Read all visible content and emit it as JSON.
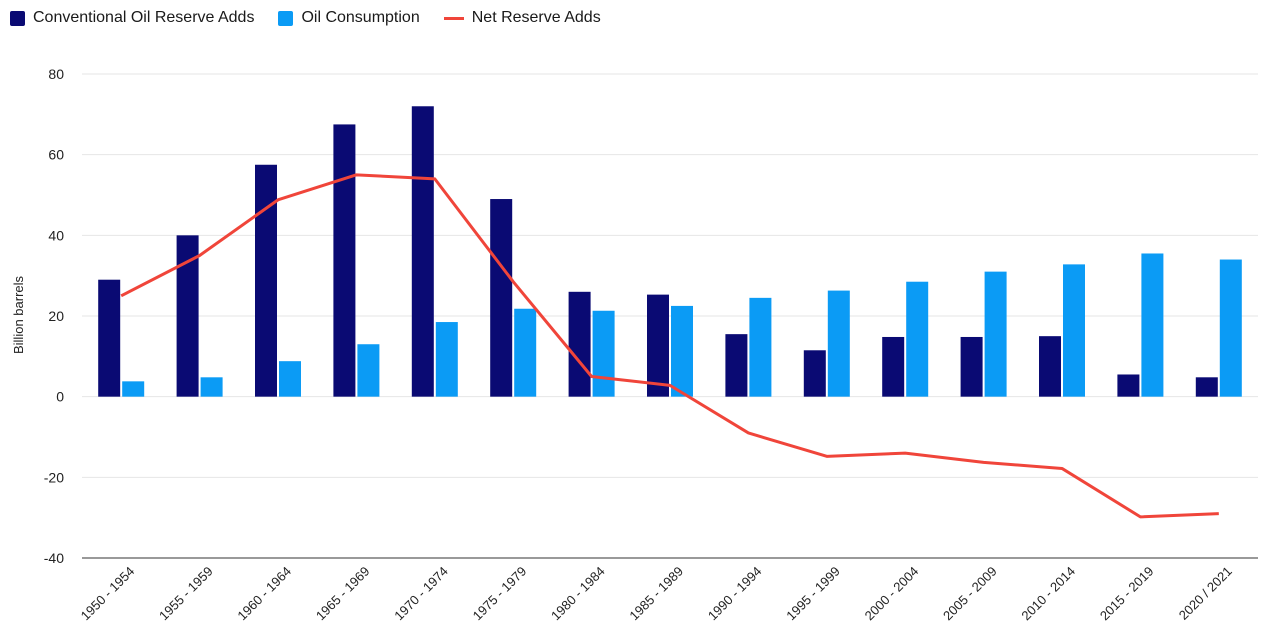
{
  "chart_data": {
    "type": "bar",
    "title": "",
    "xlabel": "",
    "ylabel": "Billion barrels",
    "ylim": [
      -40,
      80
    ],
    "yticks": [
      80,
      60,
      40,
      20,
      0,
      -20,
      -40
    ],
    "grid": true,
    "legend_position": "top-left",
    "categories": [
      "1950 - 1954",
      "1955 - 1959",
      "1960 - 1964",
      "1965 - 1969",
      "1970 - 1974",
      "1975 - 1979",
      "1980 - 1984",
      "1985 - 1989",
      "1990 - 1994",
      "1995 - 1999",
      "2000 - 2004",
      "2005 - 2009",
      "2010 - 2014",
      "2015 - 2019",
      "2020 / 2021"
    ],
    "series": [
      {
        "name": "Conventional Oil Reserve Adds",
        "kind": "bar",
        "color": "#0a0a73",
        "values": [
          29,
          40,
          57.5,
          67.5,
          72,
          49,
          26,
          25.3,
          15.5,
          11.5,
          14.8,
          14.8,
          15,
          5.5,
          4.8
        ]
      },
      {
        "name": "Oil Consumption",
        "kind": "bar",
        "color": "#0b9bf5",
        "values": [
          3.8,
          4.8,
          8.8,
          13,
          18.5,
          21.8,
          21.3,
          22.5,
          24.5,
          26.3,
          28.5,
          31,
          32.8,
          35.5,
          34
        ]
      },
      {
        "name": "Net Reserve Adds",
        "kind": "line",
        "color": "#f0453a",
        "values": [
          25,
          35,
          48.8,
          55,
          54,
          28.5,
          5,
          2.8,
          -9,
          -14.8,
          -14,
          -16.3,
          -17.8,
          -29.8,
          -29
        ]
      }
    ]
  }
}
